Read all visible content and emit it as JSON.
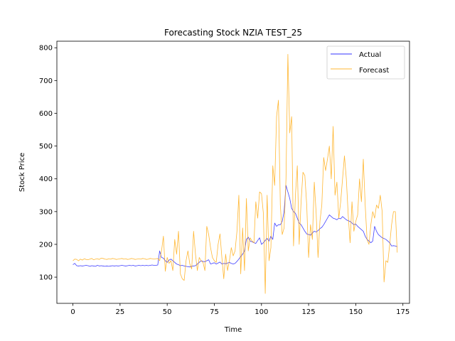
{
  "chart_data": {
    "type": "line",
    "title": "Forecasting Stock NZIA TEST_25",
    "xlabel": "Time",
    "ylabel": "Stock Price",
    "xlim": [
      -8.5,
      178.5
    ],
    "ylim": [
      20,
      820
    ],
    "xticks": [
      0,
      25,
      50,
      75,
      100,
      125,
      150,
      175
    ],
    "yticks": [
      100,
      200,
      300,
      400,
      500,
      600,
      700,
      800
    ],
    "grid": false,
    "legend_position": "upper right",
    "series": [
      {
        "name": "Actual",
        "color": "#0000ff",
        "values": [
          138,
          142,
          135,
          134,
          135,
          134,
          135,
          136,
          135,
          133,
          135,
          134,
          133,
          136,
          134,
          135,
          134,
          133,
          134,
          133,
          134,
          135,
          134,
          135,
          134,
          135,
          136,
          135,
          134,
          135,
          136,
          135,
          136,
          134,
          135,
          136,
          135,
          136,
          135,
          136,
          135,
          136,
          137,
          136,
          136,
          137,
          180,
          160,
          158,
          150,
          145,
          152,
          155,
          150,
          145,
          140,
          138,
          135,
          136,
          134,
          133,
          132,
          131,
          133,
          134,
          135,
          140,
          145,
          150,
          148,
          147,
          150,
          153,
          140,
          142,
          144,
          140,
          143,
          146,
          140,
          142,
          141,
          143,
          145,
          142,
          140,
          142,
          148,
          155,
          163,
          170,
          180,
          215,
          222,
          210,
          208,
          205,
          203,
          212,
          220,
          200,
          205,
          212,
          218,
          210,
          225,
          215,
          265,
          255,
          260,
          260,
          270,
          300,
          380,
          360,
          340,
          310,
          300,
          295,
          280,
          265,
          260,
          250,
          240,
          232,
          230,
          228,
          235,
          240,
          238,
          242,
          248,
          252,
          260,
          270,
          280,
          290,
          285,
          280,
          278,
          275,
          280,
          278,
          285,
          280,
          275,
          272,
          270,
          265,
          260,
          262,
          255,
          250,
          245,
          240,
          225,
          215,
          210,
          205,
          210,
          255,
          240,
          230,
          225,
          220,
          218,
          215,
          210,
          205,
          195,
          196,
          195,
          193
        ]
      },
      {
        "name": "Forecast",
        "color": "#ffa500",
        "values": [
          150,
          155,
          154,
          150,
          155,
          152,
          156,
          154,
          153,
          155,
          157,
          153,
          155,
          156,
          154,
          158,
          157,
          155,
          154,
          156,
          155,
          157,
          156,
          154,
          155,
          156,
          157,
          155,
          156,
          154,
          155,
          157,
          156,
          154,
          155,
          156,
          155,
          157,
          156,
          154,
          155,
          157,
          156,
          155,
          156,
          157,
          150,
          180,
          225,
          118,
          160,
          142,
          150,
          120,
          215,
          170,
          240,
          110,
          95,
          90,
          150,
          180,
          140,
          125,
          240,
          170,
          120,
          160,
          150,
          145,
          120,
          255,
          230,
          190,
          160,
          150,
          145,
          200,
          232,
          160,
          95,
          170,
          120,
          150,
          190,
          165,
          180,
          240,
          350,
          110,
          250,
          120,
          340,
          180,
          220,
          210,
          205,
          330,
          280,
          360,
          355,
          295,
          50,
          350,
          150,
          190,
          440,
          380,
          590,
          640,
          320,
          230,
          250,
          400,
          780,
          540,
          590,
          195,
          350,
          440,
          200,
          330,
          420,
          410,
          320,
          160,
          260,
          215,
          390,
          295,
          160,
          270,
          320,
          465,
          425,
          460,
          500,
          400,
          560,
          350,
          390,
          280,
          330,
          400,
          470,
          400,
          290,
          205,
          330,
          240,
          270,
          290,
          400,
          330,
          460,
          320,
          215,
          200,
          260,
          300,
          280,
          320,
          310,
          350,
          300,
          85,
          150,
          145,
          200,
          260,
          300,
          300,
          175
        ]
      }
    ]
  }
}
